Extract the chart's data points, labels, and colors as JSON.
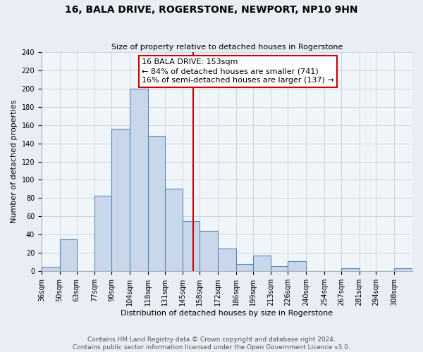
{
  "title": "16, BALA DRIVE, ROGERSTONE, NEWPORT, NP10 9HN",
  "subtitle": "Size of property relative to detached houses in Rogerstone",
  "xlabel": "Distribution of detached houses by size in Rogerstone",
  "ylabel": "Number of detached properties",
  "bin_labels": [
    "36sqm",
    "50sqm",
    "63sqm",
    "77sqm",
    "90sqm",
    "104sqm",
    "118sqm",
    "131sqm",
    "145sqm",
    "158sqm",
    "172sqm",
    "186sqm",
    "199sqm",
    "213sqm",
    "226sqm",
    "240sqm",
    "254sqm",
    "267sqm",
    "281sqm",
    "294sqm",
    "308sqm"
  ],
  "bin_edges": [
    36,
    50,
    63,
    77,
    90,
    104,
    118,
    131,
    145,
    158,
    172,
    186,
    199,
    213,
    226,
    240,
    254,
    267,
    281,
    294,
    308
  ],
  "bar_heights": [
    5,
    35,
    0,
    83,
    156,
    200,
    148,
    90,
    55,
    44,
    25,
    8,
    17,
    6,
    11,
    0,
    0,
    3,
    0,
    0,
    3
  ],
  "bar_color": "#c8d8ea",
  "bar_edge_color": "#5588bb",
  "property_value": 153,
  "vline_color": "#cc0000",
  "annotation_line1": "16 BALA DRIVE: 153sqm",
  "annotation_line2": "← 84% of detached houses are smaller (741)",
  "annotation_line3": "16% of semi-detached houses are larger (137) →",
  "annotation_box_color": "#ffffff",
  "annotation_box_edge_color": "#cc0000",
  "ylim": [
    0,
    240
  ],
  "yticks": [
    0,
    20,
    40,
    60,
    80,
    100,
    120,
    140,
    160,
    180,
    200,
    220,
    240
  ],
  "footer_line1": "Contains HM Land Registry data © Crown copyright and database right 2024.",
  "footer_line2": "Contains public sector information licensed under the Open Government Licence v3.0.",
  "background_color": "#e8eef4",
  "plot_background_color": "#f0f5fa",
  "grid_color": "#c8d0d8",
  "title_fontsize": 10,
  "subtitle_fontsize": 8,
  "ylabel_fontsize": 8,
  "xlabel_fontsize": 8,
  "tick_fontsize": 7,
  "annotation_fontsize": 8,
  "footer_fontsize": 6.5
}
